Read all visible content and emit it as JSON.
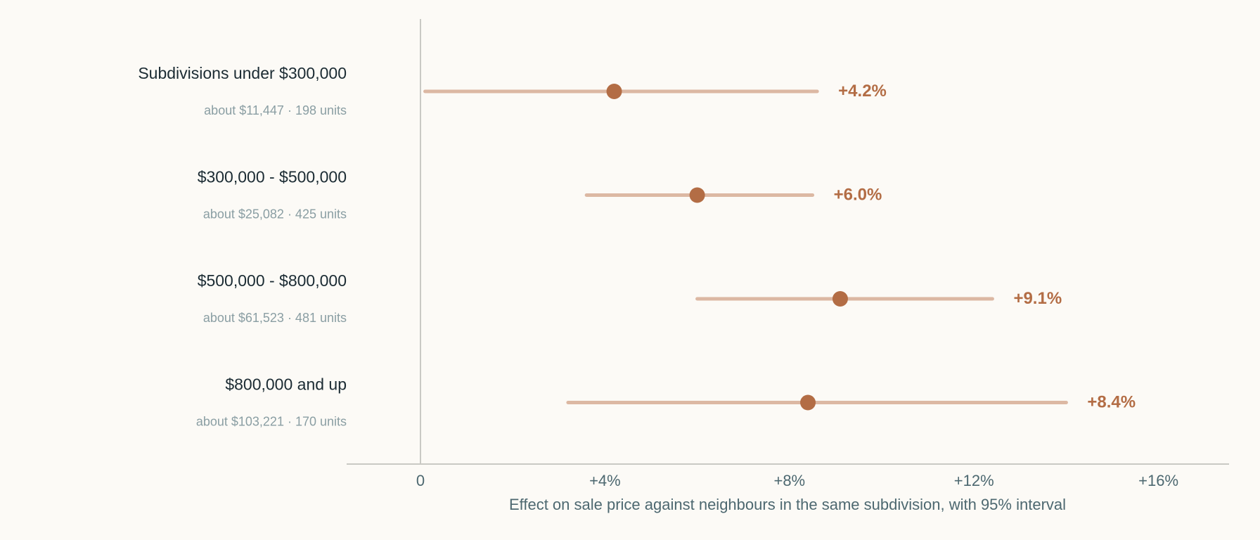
{
  "chart_data": {
    "type": "forest",
    "title": "",
    "xlabel": "Effect on sale price against neighbours in the same subdivision, with 95% interval",
    "xlim": [
      -1.6,
      17.6
    ],
    "x_ticks": [
      0,
      4,
      8,
      12,
      16
    ],
    "x_tick_labels": [
      "0",
      "+4%",
      "+8%",
      "+12%",
      "+16%"
    ],
    "grid": false,
    "categories": [
      {
        "label": "Subdivisions under $300,000",
        "sublabel": "about $11,447 · 198 units",
        "estimate": 4.2,
        "low": 0.1,
        "high": 8.6,
        "value_label": "+4.2%"
      },
      {
        "label": "$300,000 - $500,000",
        "sublabel": "about $25,082 · 425 units",
        "estimate": 6.0,
        "low": 3.6,
        "high": 8.5,
        "value_label": "+6.0%"
      },
      {
        "label": "$500,000 - $800,000",
        "sublabel": "about $61,523 · 481 units",
        "estimate": 9.1,
        "low": 6.0,
        "high": 12.4,
        "value_label": "+9.1%"
      },
      {
        "label": "$800,000 and up",
        "sublabel": "about $103,221 · 170 units",
        "estimate": 8.4,
        "low": 3.2,
        "high": 14.0,
        "value_label": "+8.4%"
      }
    ],
    "colors": {
      "point": "#b36d45",
      "interval": "#dcb8a3",
      "value_label": "#b36d45",
      "zero_line": "#c9c9c4",
      "axis": "#c9c9c4"
    }
  }
}
